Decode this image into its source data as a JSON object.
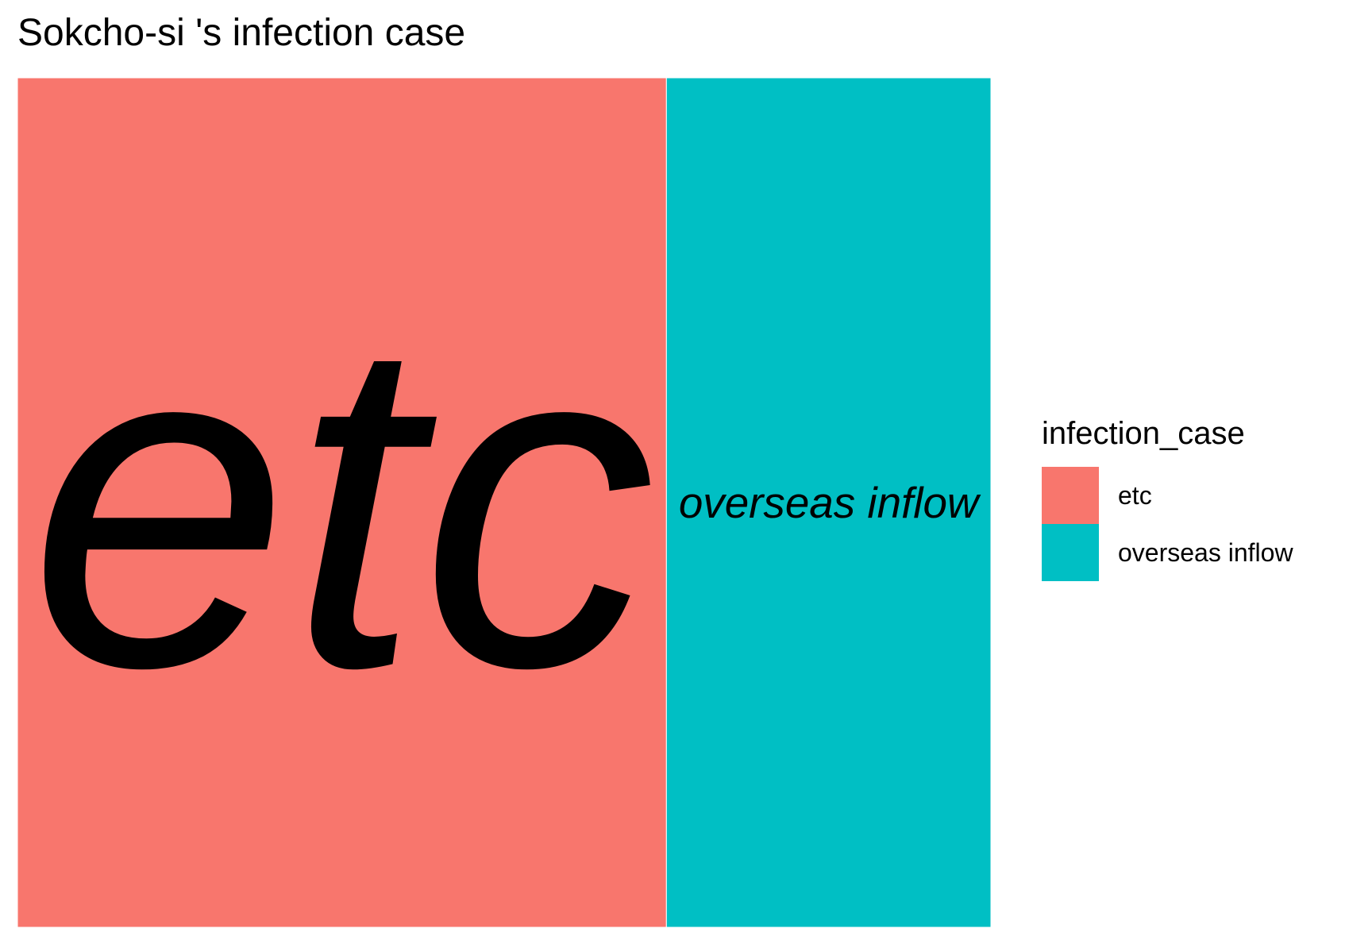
{
  "chart_data": {
    "type": "treemap",
    "title": "Sokcho-si 's infection case",
    "legend_title": "infection_case",
    "legend_position": "right",
    "grid": false,
    "categories": [
      "etc",
      "overseas inflow"
    ],
    "values": [
      2,
      1
    ],
    "colors": [
      "#F8766D",
      "#00BFC4"
    ]
  }
}
